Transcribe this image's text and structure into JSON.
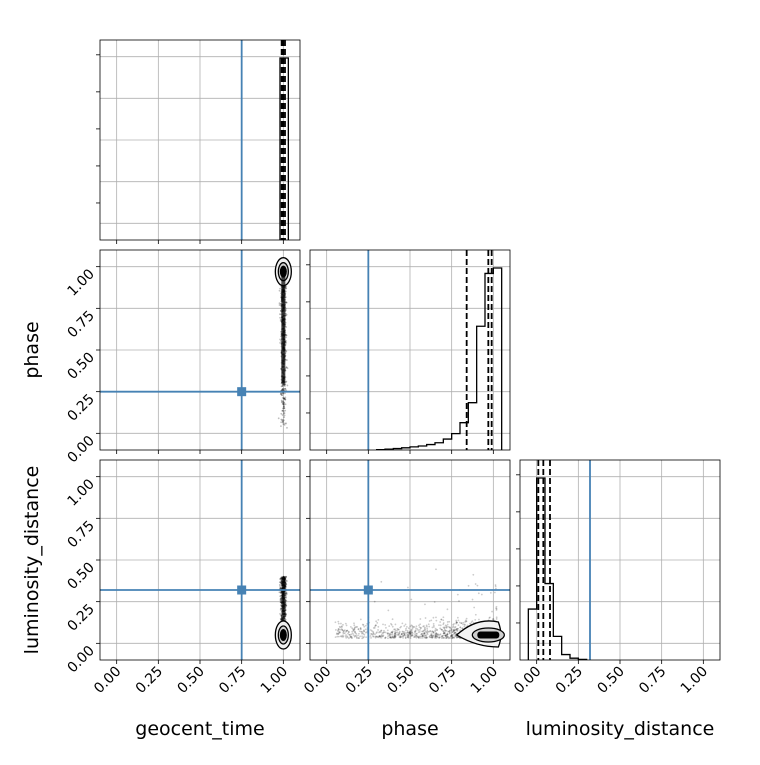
{
  "chart_data": {
    "type": "corner",
    "parameters": [
      "geocent_time",
      "phase",
      "luminosity_distance"
    ],
    "axis_labels": {
      "bottom": [
        "geocent_time",
        "phase",
        "luminosity_distance"
      ],
      "left": [
        "phase",
        "luminosity_distance"
      ]
    },
    "tick_labels": [
      "0.00",
      "0.25",
      "0.50",
      "0.75",
      "1.00"
    ],
    "tick_values": [
      0.0,
      0.25,
      0.5,
      0.75,
      1.0
    ],
    "xlim": [
      -0.1,
      1.1
    ],
    "ylim": [
      -0.1,
      1.1
    ],
    "grid": true,
    "colors": {
      "truth": "#4682b4",
      "histogram": "#000000",
      "scatter": "#000000",
      "contour_fill": "#f2f2f2"
    },
    "truths": {
      "geocent_time": 0.75,
      "phase": 0.25,
      "luminosity_distance": 0.32
    },
    "marginals": {
      "geocent_time": {
        "bin_edges": [
          0.98,
          1.005,
          1.03
        ],
        "counts": [
          1.0,
          1.0
        ],
        "quantiles": [
          0.99,
          1.0,
          1.01
        ]
      },
      "phase": {
        "bin_edges": [
          0.3,
          0.35,
          0.4,
          0.45,
          0.5,
          0.55,
          0.6,
          0.65,
          0.7,
          0.75,
          0.8,
          0.85,
          0.9,
          0.95,
          1.0,
          1.05
        ],
        "counts": [
          0.002,
          0.005,
          0.008,
          0.012,
          0.017,
          0.022,
          0.03,
          0.04,
          0.06,
          0.09,
          0.15,
          0.26,
          0.68,
          0.97,
          1.0
        ],
        "quantiles": [
          0.84,
          0.97,
          0.99
        ]
      },
      "luminosity_distance": {
        "bin_edges": [
          -0.05,
          0.0,
          0.05,
          0.1,
          0.15,
          0.2,
          0.25,
          0.3
        ],
        "counts": [
          0.28,
          1.0,
          0.42,
          0.13,
          0.03,
          0.01,
          0.003
        ],
        "quantiles": [
          0.01,
          0.04,
          0.08
        ]
      }
    },
    "joint": {
      "geocent_time_vs_phase": {
        "x_center": 1.0,
        "y_center": 0.97,
        "x_spread": 0.008,
        "y_range": [
          0.02,
          1.05
        ]
      },
      "geocent_time_vs_luminosity_distance": {
        "x_center": 1.0,
        "y_center": 0.05,
        "x_spread": 0.008,
        "y_range": [
          0.0,
          0.4
        ]
      },
      "phase_vs_luminosity_distance": {
        "x_range": [
          0.05,
          1.02
        ],
        "y_center": 0.05,
        "y_range": [
          0.0,
          0.4
        ]
      }
    }
  }
}
